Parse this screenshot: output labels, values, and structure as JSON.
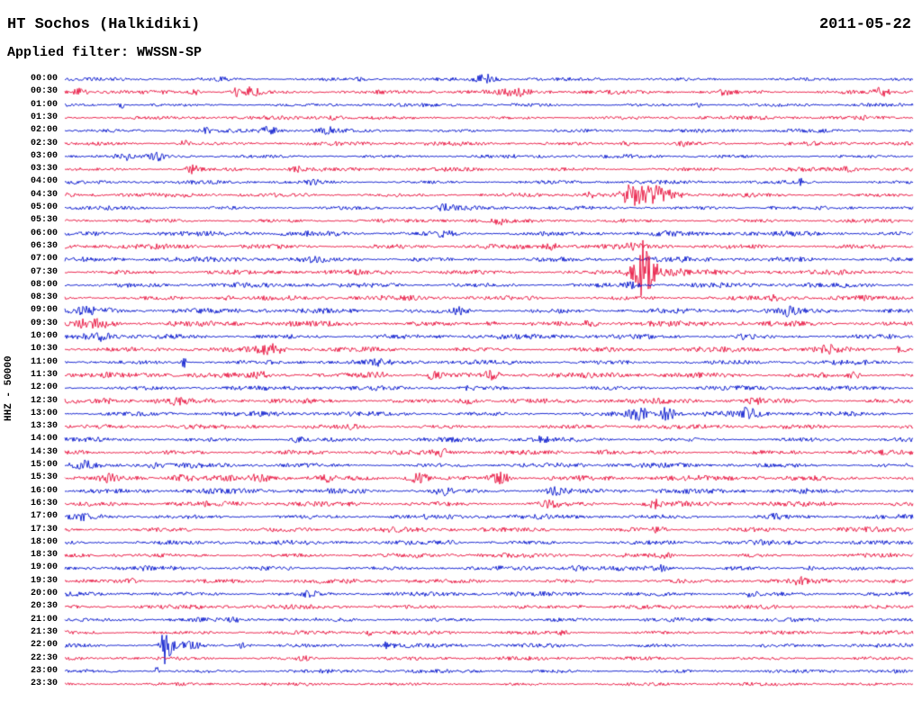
{
  "colors": {
    "blue": "#0012cc",
    "red": "#e8103c",
    "text": "#000000",
    "background": "#ffffff"
  },
  "chart_data": {
    "type": "line",
    "subtype": "helicorder-seismogram",
    "title": "HT Sochos (Halkidiki)",
    "date": "2011-05-22",
    "filter_label": "Applied filter: WWSSN-SP",
    "ylabel": "HHZ - 50000",
    "minutes_per_row": 30,
    "x_range_minutes": [
      0,
      30
    ],
    "legend": "none",
    "grid": false,
    "events_format": "[x_fraction_of_row, peak_amplitude_px, envelope_width_px]",
    "rows": [
      {
        "time": "00:00",
        "color": "blue",
        "base": 1.3,
        "events": [
          [
            0.497,
            5,
            10
          ],
          [
            0.184,
            2.5,
            6
          ],
          [
            0.35,
            2,
            6
          ]
        ]
      },
      {
        "time": "00:30",
        "color": "red",
        "base": 1.7,
        "events": [
          [
            0.019,
            4,
            7
          ],
          [
            0.152,
            3,
            6
          ],
          [
            0.202,
            5,
            5
          ],
          [
            0.221,
            5,
            8
          ],
          [
            0.53,
            3,
            16
          ],
          [
            0.778,
            3,
            6
          ],
          [
            0.964,
            4.5,
            8
          ]
        ]
      },
      {
        "time": "01:00",
        "color": "blue",
        "base": 1.3,
        "events": [
          [
            0.067,
            3,
            6
          ],
          [
            0.746,
            2.5,
            5
          ]
        ]
      },
      {
        "time": "01:30",
        "color": "red",
        "base": 1.4,
        "events": [
          [
            0.316,
            2,
            10
          ],
          [
            0.943,
            2,
            6
          ]
        ]
      },
      {
        "time": "02:00",
        "color": "blue",
        "base": 1.4,
        "events": [
          [
            0.242,
            4.5,
            10
          ],
          [
            0.168,
            2.5,
            6
          ],
          [
            0.311,
            3,
            8
          ]
        ]
      },
      {
        "time": "02:30",
        "color": "red",
        "base": 1.5,
        "events": [
          [
            0.141,
            3.5,
            6
          ],
          [
            0.661,
            2.5,
            10
          ],
          [
            0.725,
            2.5,
            8
          ]
        ]
      },
      {
        "time": "03:00",
        "color": "blue",
        "base": 1.4,
        "events": [
          [
            0.067,
            4,
            10
          ],
          [
            0.109,
            3,
            8
          ]
        ]
      },
      {
        "time": "03:30",
        "color": "red",
        "base": 1.5,
        "events": [
          [
            0.15,
            4.5,
            7
          ],
          [
            0.274,
            2.5,
            8
          ],
          [
            0.921,
            2.5,
            10
          ]
        ]
      },
      {
        "time": "04:00",
        "color": "blue",
        "base": 1.4,
        "events": [
          [
            0.868,
            6,
            2
          ],
          [
            0.295,
            2,
            8
          ]
        ]
      },
      {
        "time": "04:30",
        "color": "red",
        "base": 1.6,
        "events": [
          [
            0.667,
            8,
            10
          ],
          [
            0.688,
            6,
            14
          ],
          [
            0.7,
            5,
            26
          ],
          [
            0.619,
            3,
            6
          ]
        ]
      },
      {
        "time": "05:00",
        "color": "blue",
        "base": 1.5,
        "events": [
          [
            0.449,
            3,
            10
          ],
          [
            0.836,
            2,
            6
          ]
        ]
      },
      {
        "time": "05:30",
        "color": "red",
        "base": 1.5,
        "events": [
          [
            0.513,
            2.5,
            8
          ]
        ]
      },
      {
        "time": "06:00",
        "color": "blue",
        "base": 1.9,
        "events": [
          [
            0.444,
            2.5,
            12
          ]
        ]
      },
      {
        "time": "06:30",
        "color": "red",
        "base": 1.9,
        "events": [
          [
            0.576,
            2.5,
            10
          ],
          [
            0.667,
            2.5,
            8
          ]
        ]
      },
      {
        "time": "07:00",
        "color": "blue",
        "base": 1.9,
        "events": [
          [
            0.295,
            2,
            10
          ]
        ]
      },
      {
        "time": "07:30",
        "color": "red",
        "base": 1.8,
        "events": [
          [
            0.682,
            22,
            6
          ],
          [
            0.684,
            14,
            14
          ],
          [
            0.7,
            5,
            30
          ]
        ]
      },
      {
        "time": "08:00",
        "color": "blue",
        "base": 1.8,
        "events": [
          [
            0.667,
            2.5,
            10
          ]
        ]
      },
      {
        "time": "08:30",
        "color": "red",
        "base": 1.8,
        "events": [
          [
            0.842,
            4,
            8
          ],
          [
            0.189,
            2,
            8
          ]
        ]
      },
      {
        "time": "09:00",
        "color": "blue",
        "base": 1.9,
        "events": [
          [
            0.465,
            4,
            8
          ],
          [
            0.852,
            4.5,
            8
          ],
          [
            0.03,
            3,
            25
          ]
        ]
      },
      {
        "time": "09:30",
        "color": "red",
        "base": 2.0,
        "events": [
          [
            0.035,
            5,
            20
          ],
          [
            0.619,
            3.5,
            8
          ],
          [
            0.502,
            3,
            10
          ]
        ]
      },
      {
        "time": "10:00",
        "color": "blue",
        "base": 1.9,
        "events": [
          [
            0.04,
            5,
            15
          ],
          [
            0.805,
            2.5,
            8
          ]
        ]
      },
      {
        "time": "10:30",
        "color": "red",
        "base": 1.9,
        "events": [
          [
            0.242,
            5,
            12
          ],
          [
            0.9,
            4,
            8
          ],
          [
            0.985,
            4,
            6
          ]
        ]
      },
      {
        "time": "11:00",
        "color": "blue",
        "base": 1.8,
        "events": [
          [
            0.141,
            7,
            2.5
          ],
          [
            0.369,
            2,
            10
          ]
        ]
      },
      {
        "time": "11:30",
        "color": "red",
        "base": 2.0,
        "events": [
          [
            0.231,
            3.5,
            8
          ],
          [
            0.369,
            3,
            15
          ],
          [
            0.433,
            3.5,
            12
          ],
          [
            0.502,
            3.5,
            10
          ],
          [
            0.932,
            3,
            8
          ]
        ]
      },
      {
        "time": "12:00",
        "color": "blue",
        "base": 1.7,
        "events": [
          [
            0.476,
            2,
            8
          ]
        ]
      },
      {
        "time": "12:30",
        "color": "red",
        "base": 1.9,
        "events": [
          [
            0.051,
            3.5,
            6
          ],
          [
            0.131,
            3,
            6
          ],
          [
            0.476,
            3.5,
            10
          ],
          [
            0.815,
            2.5,
            8
          ]
        ]
      },
      {
        "time": "13:00",
        "color": "blue",
        "base": 1.8,
        "events": [
          [
            0.677,
            7,
            12
          ],
          [
            0.709,
            7,
            10
          ],
          [
            0.805,
            5.5,
            12
          ]
        ]
      },
      {
        "time": "13:30",
        "color": "red",
        "base": 1.7,
        "events": [
          [
            0.338,
            2,
            8
          ]
        ]
      },
      {
        "time": "14:00",
        "color": "blue",
        "base": 1.7,
        "events": [
          [
            0.274,
            2.5,
            8
          ],
          [
            0.56,
            2,
            10
          ]
        ]
      },
      {
        "time": "14:30",
        "color": "red",
        "base": 1.8,
        "events": [
          [
            0.444,
            3,
            8
          ],
          [
            0.635,
            3,
            8
          ]
        ]
      },
      {
        "time": "15:00",
        "color": "blue",
        "base": 1.8,
        "events": [
          [
            0.024,
            3.5,
            8
          ],
          [
            0.104,
            2.5,
            6
          ]
        ]
      },
      {
        "time": "15:30",
        "color": "red",
        "base": 2.0,
        "events": [
          [
            0.051,
            3,
            10
          ],
          [
            0.136,
            3,
            10
          ],
          [
            0.231,
            3,
            12
          ],
          [
            0.306,
            3,
            10
          ],
          [
            0.417,
            6.5,
            10
          ],
          [
            0.513,
            6,
            12
          ]
        ]
      },
      {
        "time": "16:00",
        "color": "blue",
        "base": 1.9,
        "events": [
          [
            0.444,
            4.5,
            10
          ],
          [
            0.576,
            4,
            10
          ]
        ]
      },
      {
        "time": "16:30",
        "color": "red",
        "base": 1.9,
        "events": [
          [
            0.571,
            3.5,
            10
          ],
          [
            0.693,
            4.5,
            8
          ]
        ]
      },
      {
        "time": "17:00",
        "color": "blue",
        "base": 1.8,
        "events": [
          [
            0.019,
            2.5,
            8
          ],
          [
            0.836,
            2.5,
            6
          ]
        ]
      },
      {
        "time": "17:30",
        "color": "red",
        "base": 1.8,
        "events": [
          [
            0.698,
            3,
            8
          ]
        ]
      },
      {
        "time": "18:00",
        "color": "blue",
        "base": 1.7,
        "events": [
          [
            0.454,
            2,
            10
          ]
        ]
      },
      {
        "time": "18:30",
        "color": "red",
        "base": 1.7,
        "events": [
          [
            0.709,
            2.5,
            8
          ]
        ]
      },
      {
        "time": "19:00",
        "color": "blue",
        "base": 1.7,
        "events": [
          [
            0.603,
            3,
            8
          ],
          [
            0.704,
            3,
            8
          ],
          [
            0.879,
            2.5,
            6
          ]
        ]
      },
      {
        "time": "19:30",
        "color": "red",
        "base": 1.7,
        "events": [
          [
            0.077,
            3,
            8
          ],
          [
            0.868,
            2.5,
            8
          ]
        ]
      },
      {
        "time": "20:00",
        "color": "blue",
        "base": 1.7,
        "events": [
          [
            0.29,
            3,
            8
          ],
          [
            0.81,
            3,
            8
          ]
        ]
      },
      {
        "time": "20:30",
        "color": "red",
        "base": 1.6,
        "events": [
          [
            0.603,
            2,
            8
          ]
        ]
      },
      {
        "time": "21:00",
        "color": "blue",
        "base": 1.5,
        "events": [
          [
            0.2,
            2,
            8
          ]
        ]
      },
      {
        "time": "21:30",
        "color": "red",
        "base": 1.5,
        "events": [
          [
            0.359,
            2.5,
            6
          ],
          [
            0.587,
            2,
            6
          ]
        ]
      },
      {
        "time": "22:00",
        "color": "blue",
        "base": 1.5,
        "events": [
          [
            0.118,
            20,
            2.5
          ],
          [
            0.12,
            12,
            6
          ],
          [
            0.14,
            4,
            18
          ],
          [
            0.21,
            3,
            8
          ],
          [
            0.38,
            3.5,
            8
          ]
        ]
      },
      {
        "time": "22:30",
        "color": "red",
        "base": 1.4,
        "events": [
          [
            0.284,
            2,
            8
          ]
        ]
      },
      {
        "time": "23:00",
        "color": "blue",
        "base": 1.4,
        "events": [
          [
            0.109,
            8,
            2
          ]
        ]
      },
      {
        "time": "23:30",
        "color": "red",
        "base": 1.2,
        "events": []
      }
    ]
  }
}
